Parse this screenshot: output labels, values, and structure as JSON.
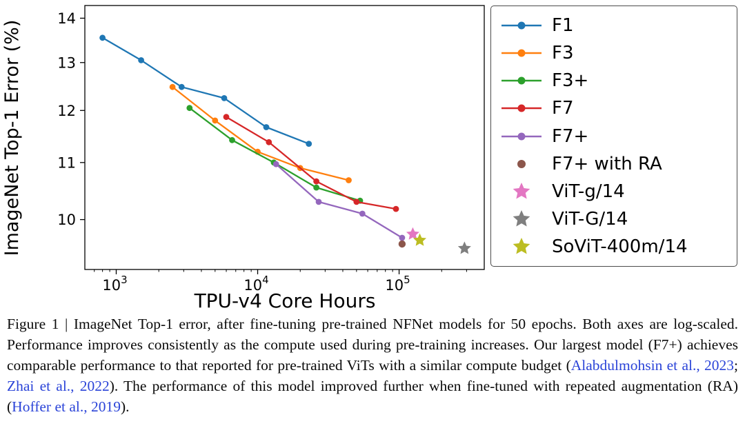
{
  "chart_data": {
    "type": "line",
    "title": "",
    "xlabel": "TPU-v4 Core Hours",
    "ylabel": "ImageNet Top-1 Error (%)",
    "x_scale": "log",
    "y_scale": "log",
    "xlim": [
      600,
      400000
    ],
    "ylim": [
      9.2,
      14.3
    ],
    "x_tick_exponents": [
      3,
      4,
      5
    ],
    "y_ticks": [
      10,
      11,
      12,
      13,
      14
    ],
    "grid": false,
    "legend_position": "right",
    "series": [
      {
        "name": "F1",
        "color": "#1f77b4",
        "marker": "circle",
        "line": true,
        "points": [
          [
            800,
            13.55
          ],
          [
            1500,
            13.05
          ],
          [
            2900,
            12.48
          ],
          [
            5800,
            12.25
          ],
          [
            11500,
            11.67
          ],
          [
            23000,
            11.35
          ]
        ]
      },
      {
        "name": "F3",
        "color": "#ff7f0e",
        "marker": "circle",
        "line": true,
        "points": [
          [
            2500,
            12.48
          ],
          [
            5000,
            11.8
          ],
          [
            10000,
            11.2
          ],
          [
            20000,
            10.9
          ],
          [
            44000,
            10.68
          ]
        ]
      },
      {
        "name": "F3+",
        "color": "#2ca02c",
        "marker": "circle",
        "line": true,
        "points": [
          [
            3300,
            12.05
          ],
          [
            6600,
            11.42
          ],
          [
            13000,
            11.0
          ],
          [
            26000,
            10.55
          ],
          [
            53000,
            10.32
          ]
        ]
      },
      {
        "name": "F7",
        "color": "#d62728",
        "marker": "circle",
        "line": true,
        "points": [
          [
            6000,
            11.87
          ],
          [
            12000,
            11.38
          ],
          [
            26000,
            10.66
          ],
          [
            50000,
            10.3
          ],
          [
            95000,
            10.18
          ]
        ]
      },
      {
        "name": "F7+",
        "color": "#9467bd",
        "marker": "circle",
        "line": true,
        "points": [
          [
            13500,
            10.97
          ],
          [
            27000,
            10.3
          ],
          [
            55000,
            10.1
          ],
          [
            105000,
            9.7
          ]
        ]
      },
      {
        "name": "F7+ with RA",
        "color": "#8c564b",
        "marker": "circle",
        "line": false,
        "points": [
          [
            105000,
            9.6
          ]
        ]
      },
      {
        "name": "ViT-g/14",
        "color": "#e377c2",
        "marker": "star",
        "line": false,
        "points": [
          [
            125000,
            9.76
          ]
        ]
      },
      {
        "name": "ViT-G/14",
        "color": "#7f7f7f",
        "marker": "star",
        "line": false,
        "points": [
          [
            290000,
            9.53
          ]
        ]
      },
      {
        "name": "SoViT-400m/14",
        "color": "#bcbd22",
        "marker": "star",
        "line": false,
        "points": [
          [
            140000,
            9.66
          ]
        ]
      }
    ]
  },
  "caption": {
    "link_color": "#2b44d8",
    "segments": [
      {
        "link": false,
        "text": "Figure 1 | ImageNet Top-1 error, after fine-tuning pre-trained NFNet models for 50 epochs. Both axes are log-scaled. Performance improves consistently as the compute used during pre-training increases. Our largest model (F7+) achieves comparable performance to that reported for pre-trained ViTs with a similar compute budget ("
      },
      {
        "link": true,
        "text": "Alabdulmohsin et al., 2023"
      },
      {
        "link": false,
        "text": "; "
      },
      {
        "link": true,
        "text": "Zhai et al., 2022"
      },
      {
        "link": false,
        "text": "). The performance of this model improved further when fine-tuned with repeated augmentation (RA) ("
      },
      {
        "link": true,
        "text": "Hoffer et al., 2019"
      },
      {
        "link": false,
        "text": ")."
      }
    ]
  }
}
